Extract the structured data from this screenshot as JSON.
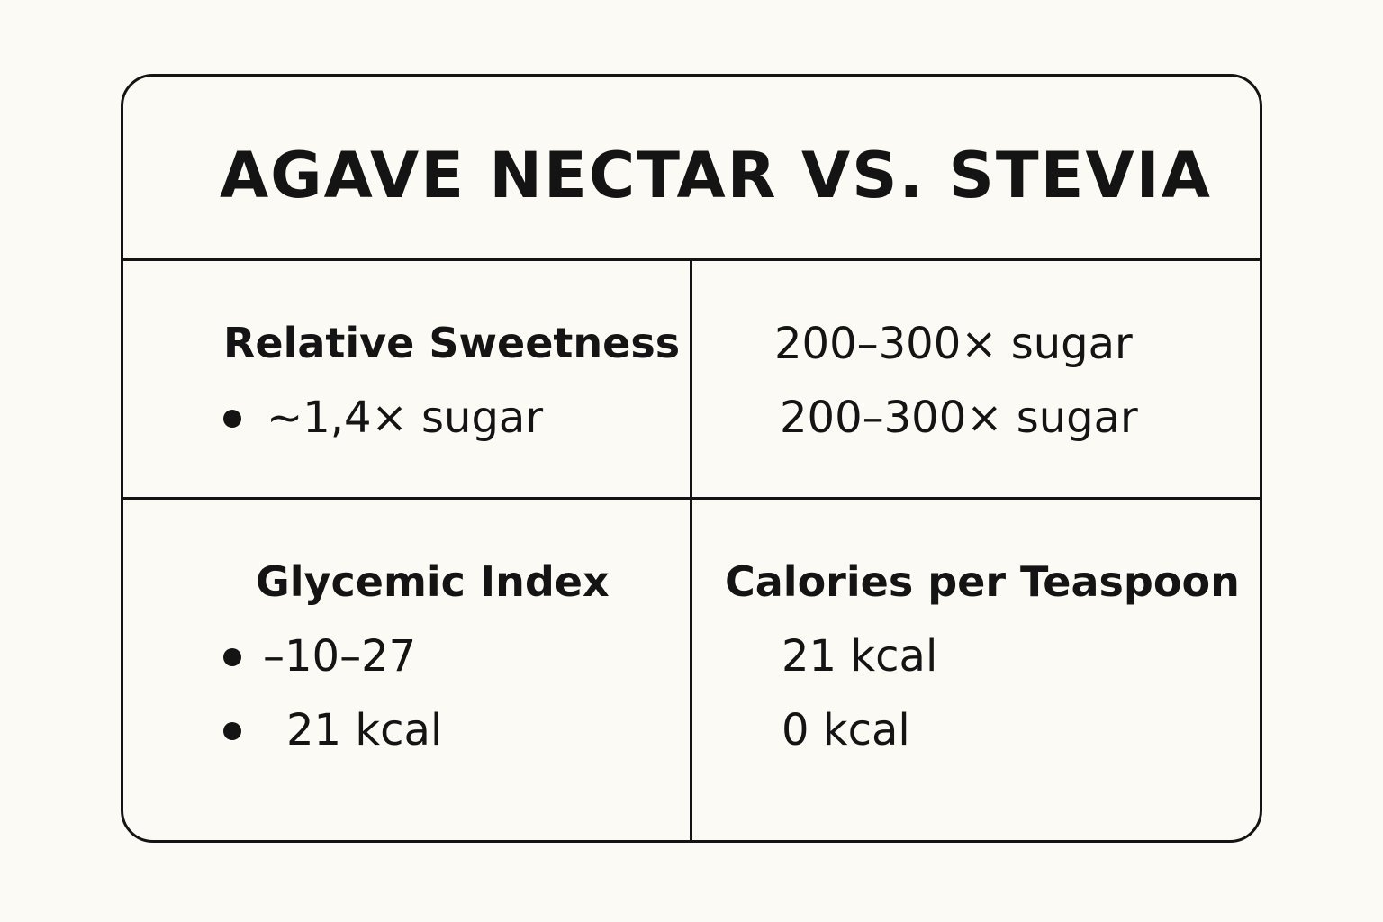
{
  "title": "AGAVE NECTAR VS. STEVIA",
  "cells": {
    "top_left": {
      "heading": "Relative Sweetness",
      "items": [
        "~1,4× sugar"
      ]
    },
    "top_right": {
      "lines": [
        "200–300× sugar",
        "200–300× sugar"
      ]
    },
    "bottom_left": {
      "heading": "Glycemic Index",
      "items": [
        "–10–27",
        "21 kcal"
      ]
    },
    "bottom_right": {
      "heading": "Calories per Teaspoon",
      "lines": [
        "21 kcal",
        "0 kcal"
      ]
    }
  },
  "icons": {
    "bullet": "filled-circle"
  },
  "colors": {
    "background": "#fbfaf4",
    "ink": "#141414"
  }
}
